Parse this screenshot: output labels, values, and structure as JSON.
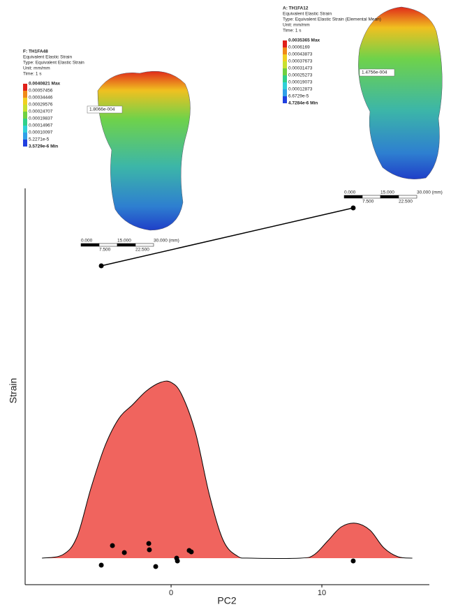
{
  "chart_data": {
    "type": "density",
    "x_label": "PC2",
    "y_label": "Strain",
    "xlim": [
      -9.68,
      17.13
    ],
    "ylim": [
      -0.38,
      5.3
    ],
    "xticks": [
      0,
      10
    ],
    "color": "#f0645e",
    "density": {
      "x": [
        -8.56,
        -7.18,
        -6.25,
        -5.32,
        -4.4,
        -3.47,
        -2.55,
        -1.62,
        -0.69,
        0,
        0.69,
        1.62,
        2.55,
        3.47,
        4.4,
        5.32,
        8.56,
        9.49,
        10.4,
        11.3,
        12.27,
        13.2,
        14.1,
        15.05,
        16
      ],
      "y": [
        0,
        0.05,
        0.3,
        1.0,
        1.6,
        2.0,
        2.2,
        2.4,
        2.52,
        2.52,
        2.35,
        1.8,
        0.9,
        0.25,
        0.03,
        0,
        0,
        0.05,
        0.25,
        0.45,
        0.5,
        0.4,
        0.15,
        0.02,
        0
      ]
    },
    "points": {
      "x": [
        -4.63,
        -3.89,
        -3.1,
        -1.48,
        -1.44,
        -1.02,
        0.37,
        0.42,
        1.2,
        1.34,
        12.08
      ],
      "y": [
        -0.1,
        0.18,
        0.08,
        0.21,
        0.12,
        -0.12,
        0.0,
        -0.04,
        0.11,
        0.09,
        -0.04
      ]
    },
    "annotation_points": {
      "x": [
        -4.63,
        12.08
      ],
      "y": [
        4.19,
        5.02
      ]
    }
  },
  "insets": [
    {
      "title": "F: TH1FA48",
      "lines": [
        "Equivalent Elastic Strain",
        "Type: Equivalent Elastic Strain",
        "Unit: mm/mm",
        "Time: 1 s"
      ],
      "legend": [
        "0.0040821 Max",
        "0.00057456",
        "0.00034446",
        "0.00029576",
        "0.00024707",
        "0.00019837",
        "0.00014967",
        "0.00010097",
        "5.2271e-5",
        "3.5729e-6 Min"
      ],
      "probe": "1.8066e-004",
      "scale_top": [
        "0.000",
        "15.000",
        "30.000 (mm)"
      ],
      "scale_bottom": [
        "7.500",
        "22.500"
      ]
    },
    {
      "title": "A: TH1FA12",
      "lines": [
        "Equivalent Elastic Strain",
        "Type: Equivalent Elastic Strain (Elemental Mean)",
        "Unit: mm/mm",
        "Time: 1 s"
      ],
      "legend": [
        "0.0035365 Max",
        "0.0006169",
        "0.00043873",
        "0.00037673",
        "0.00031473",
        "0.00025273",
        "0.00019073",
        "0.00012873",
        "6.6729e-5",
        "4.7284e-6 Min"
      ],
      "probe": "1.4756e-004",
      "scale_top": [
        "0.000",
        "15.000",
        "30.000 (mm)"
      ],
      "scale_bottom": [
        "7.500",
        "22.500"
      ]
    }
  ]
}
